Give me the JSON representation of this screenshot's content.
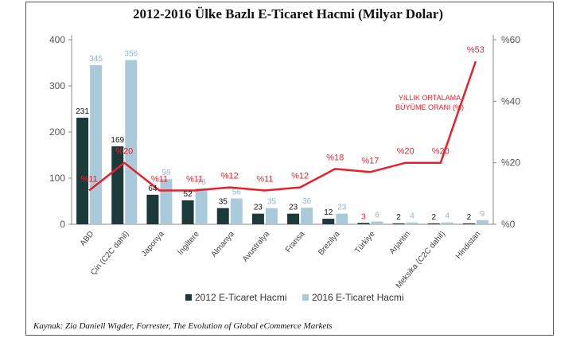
{
  "title": "2012-2016 Ülke Bazlı E-Ticaret Hacmi (Milyar Dolar)",
  "source": "Kaynak: Zia Daniell Wigder, Forrester, The Evolution of Global eCommerce Markets",
  "annotation_line1": "YILLIK ORTALAMA",
  "annotation_line2": "BÜYÜME ORANI (%)",
  "chart_data": {
    "type": "bar",
    "categories": [
      "ABD",
      "Çin (C2C dahil)",
      "Japonya",
      "İngiltere",
      "Almanya",
      "Avustralya",
      "Fransa",
      "Brezilya",
      "Türkiye",
      "Arjantin",
      "Meksika (C2C dahil)",
      "Hindistan"
    ],
    "series": [
      {
        "name": "2012 E-Ticaret Hacmi",
        "values": [
          231,
          169,
          64,
          52,
          35,
          23,
          23,
          12,
          3,
          2,
          2,
          2
        ],
        "labels": [
          "231",
          "169",
          "64",
          "52",
          "35",
          "23",
          "23",
          "12",
          "3",
          "2",
          "2",
          "2"
        ],
        "color": "#1d3a3a"
      },
      {
        "name": "2016 E-Ticaret Hacmi",
        "values": [
          345,
          356,
          98,
          78,
          56,
          35,
          36,
          23,
          6,
          4,
          4,
          9
        ],
        "labels": [
          "345",
          "356",
          "98",
          "78",
          "56",
          "35",
          "36",
          "23",
          "6",
          "4",
          "4",
          "9"
        ],
        "color": "#a9cadb"
      },
      {
        "name": "YILLIK ORTALAMA BÜYÜME ORANI (%)",
        "axis": "right",
        "values": [
          11,
          20,
          11,
          11,
          12,
          11,
          12,
          18,
          17,
          20,
          20,
          53
        ],
        "labels": [
          "%11",
          "%20",
          "%11",
          "%11",
          "%12",
          "%11",
          "%12",
          "%18",
          "%17",
          "%20",
          "%20",
          "%53"
        ],
        "color": "#e8202a"
      }
    ],
    "ylim": [
      0,
      400
    ],
    "yticks": [
      "0",
      "100",
      "200",
      "300",
      "400"
    ],
    "y2lim": [
      0,
      60
    ],
    "y2ticks": [
      "%0",
      "%20",
      "%40",
      "%60"
    ],
    "legend": "bottom",
    "grid": false
  }
}
